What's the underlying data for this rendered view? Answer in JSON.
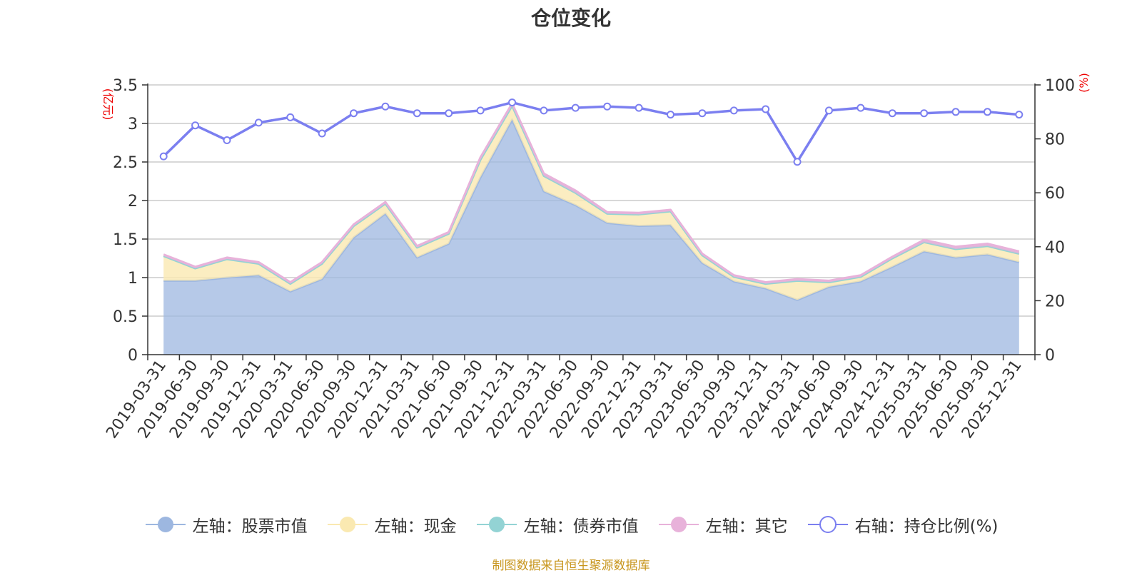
{
  "title": "仓位变化",
  "footer": "制图数据来自恒生聚源数据库",
  "chart_data": {
    "type": "area",
    "title": "仓位变化",
    "y_left_unit": "(亿元)",
    "y_right_unit": "(%)",
    "y_left_lim": [
      0,
      3.5
    ],
    "y_left_ticks": [
      "0",
      "0.5",
      "1",
      "1.5",
      "2",
      "2.5",
      "3",
      "3.5"
    ],
    "y_right_lim": [
      0,
      100
    ],
    "y_right_ticks": [
      "0",
      "20",
      "40",
      "60",
      "80",
      "100"
    ],
    "grid": true,
    "legend_position": "bottom",
    "colors": {
      "stock": "#9db7e0",
      "cash": "#fae9b1",
      "bond": "#93d3d4",
      "other": "#e8b2da",
      "ratio": "#7b7ff0"
    },
    "x": [
      "2019-03-31",
      "2019-06-30",
      "2019-09-30",
      "2019-12-31",
      "2020-03-31",
      "2020-06-30",
      "2020-09-30",
      "2020-12-31",
      "2021-03-31",
      "2021-06-30",
      "2021-09-30",
      "2021-12-31",
      "2022-03-31",
      "2022-06-30",
      "2022-09-30",
      "2022-12-31",
      "2023-03-31",
      "2023-06-30",
      "2023-09-30",
      "2023-12-31",
      "2024-03-31",
      "2024-06-30",
      "2024-09-30",
      "2024-12-31",
      "2025-03-31",
      "2025-06-30",
      "2025-09-30",
      "2025-12-31"
    ],
    "series": [
      {
        "name": "左轴：股票市值",
        "axis": "left",
        "kind": "area-stack",
        "color": "#9db7e0",
        "values": [
          0.96,
          0.96,
          1.0,
          1.03,
          0.82,
          0.98,
          1.52,
          1.83,
          1.26,
          1.44,
          2.3,
          3.05,
          2.12,
          1.94,
          1.71,
          1.67,
          1.68,
          1.19,
          0.95,
          0.86,
          0.71,
          0.88,
          0.95,
          1.14,
          1.34,
          1.26,
          1.3,
          1.2
        ]
      },
      {
        "name": "左轴：现金",
        "axis": "left",
        "kind": "area-stack",
        "color": "#fae9b1",
        "values": [
          0.32,
          0.16,
          0.24,
          0.15,
          0.1,
          0.2,
          0.15,
          0.13,
          0.13,
          0.13,
          0.23,
          0.18,
          0.2,
          0.16,
          0.12,
          0.15,
          0.18,
          0.1,
          0.06,
          0.06,
          0.25,
          0.06,
          0.06,
          0.11,
          0.12,
          0.11,
          0.11,
          0.11
        ]
      },
      {
        "name": "左轴：债券市值",
        "axis": "left",
        "kind": "area-stack",
        "color": "#93d3d4",
        "values": [
          0,
          0,
          0,
          0,
          0,
          0,
          0,
          0,
          0,
          0,
          0,
          0,
          0,
          0,
          0,
          0,
          0,
          0,
          0,
          0,
          0,
          0,
          0,
          0,
          0,
          0,
          0,
          0
        ]
      },
      {
        "name": "左轴：其它",
        "axis": "left",
        "kind": "area-stack",
        "color": "#e8b2da",
        "values": [
          0.02,
          0.02,
          0.02,
          0.02,
          0.02,
          0.02,
          0.02,
          0.02,
          0.02,
          0.02,
          0.03,
          0.03,
          0.03,
          0.03,
          0.02,
          0.02,
          0.02,
          0.02,
          0.02,
          0.02,
          0.02,
          0.02,
          0.02,
          0.02,
          0.03,
          0.03,
          0.03,
          0.03
        ]
      },
      {
        "name": "右轴：持仓比例(%)",
        "axis": "right",
        "kind": "line",
        "color": "#7b7ff0",
        "values": [
          73.5,
          85.0,
          79.5,
          86.0,
          88.0,
          82.0,
          89.5,
          92.0,
          89.5,
          89.5,
          90.5,
          93.5,
          90.5,
          91.5,
          92.0,
          91.5,
          89.0,
          89.5,
          90.5,
          91.0,
          71.5,
          90.5,
          91.5,
          89.5,
          89.5,
          90.0,
          90.0,
          89.0
        ]
      }
    ]
  }
}
